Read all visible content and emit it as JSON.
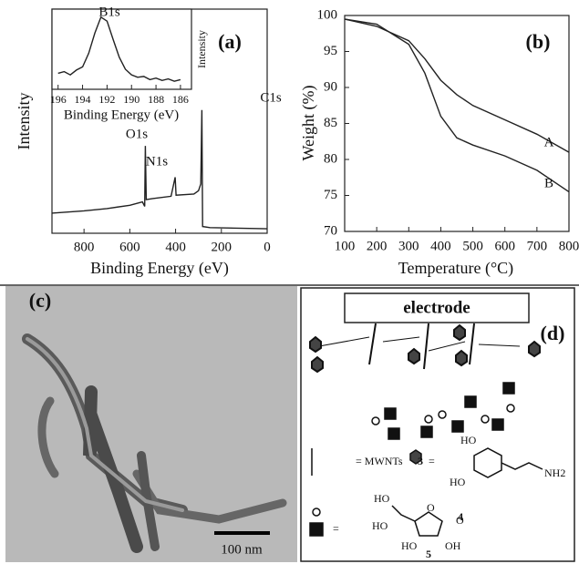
{
  "chart_data": [
    {
      "type": "line",
      "panel_label": "(a)",
      "x_label": "Binding Energy (eV)",
      "y_label": "Intensity",
      "x": [
        940,
        800,
        700,
        600,
        545,
        535,
        532,
        528,
        500,
        420,
        402,
        398,
        320,
        300,
        290,
        285,
        282,
        250,
        0
      ],
      "values": [
        9,
        10,
        11,
        12.5,
        14,
        12,
        39,
        15,
        15.5,
        16.5,
        25,
        17,
        17.5,
        19,
        22,
        55,
        3,
        2.5,
        2
      ],
      "color": "#222",
      "xlim": [
        940,
        0
      ],
      "ylim": [
        0,
        100
      ],
      "xticks": [
        800,
        600,
        400,
        200,
        0
      ],
      "annotations": [
        "O1s",
        "N1s",
        "C1s"
      ]
    },
    {
      "type": "line",
      "x_label": "Binding Energy (eV)",
      "y_label": "Intensity",
      "peak_label": "B1s",
      "x": [
        196,
        195.5,
        195,
        194.5,
        194,
        193.5,
        193,
        192.5,
        192,
        191.5,
        191,
        190.5,
        190,
        189.5,
        189,
        188.5,
        188,
        187.5,
        187,
        186.5,
        186
      ],
      "values": [
        20,
        22,
        18,
        24,
        28,
        45,
        70,
        90,
        85,
        62,
        40,
        25,
        18,
        15,
        16,
        12,
        14,
        11,
        13,
        10,
        12
      ],
      "color": "#222",
      "xlim": [
        196.5,
        185.1
      ],
      "ylim": [
        0,
        100
      ],
      "xticks": [
        196,
        194,
        192,
        190,
        188,
        186
      ]
    },
    {
      "type": "line",
      "panel_label": "(b)",
      "x_label": "Temperature (°C)",
      "y_label": "Weight (%)",
      "x": [
        100,
        200,
        300,
        350,
        400,
        450,
        500,
        600,
        700,
        800
      ],
      "series": [
        {
          "name": "A",
          "color": "#222",
          "values": [
            99.5,
            98.5,
            96.5,
            94,
            91,
            89,
            87.5,
            85.5,
            83.5,
            81
          ]
        },
        {
          "name": "B",
          "color": "#222",
          "values": [
            99.5,
            98.8,
            96,
            92,
            86,
            83,
            82,
            80.5,
            78.5,
            75.5
          ]
        }
      ],
      "xlim": [
        100,
        800
      ],
      "ylim": [
        70,
        100
      ],
      "xticks": [
        100,
        200,
        300,
        400,
        500,
        600,
        700,
        800
      ],
      "yticks": [
        70,
        75,
        80,
        85,
        90,
        95,
        100
      ]
    }
  ],
  "tem_image": {
    "panel_label": "(c)",
    "scale_bar": "100 nm"
  },
  "scheme": {
    "panel_label": "(d)",
    "electrode": "electrode",
    "mwnt_legend": "= MWNTs",
    "compound_3": "3",
    "compound_4": "4",
    "compound_5": "5",
    "equals": [
      "=",
      "="
    ],
    "atoms": [
      "HO",
      "HO",
      "NH2",
      "HO",
      "HO",
      "O",
      "O",
      "HO",
      "OH"
    ]
  }
}
